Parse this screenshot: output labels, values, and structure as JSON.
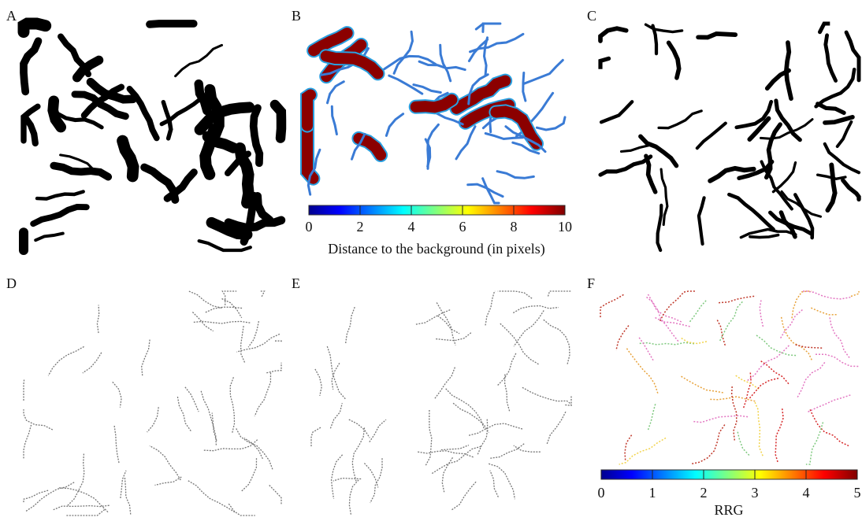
{
  "panels": [
    {
      "label": "A"
    },
    {
      "label": "B"
    },
    {
      "label": "C"
    },
    {
      "label": "D"
    },
    {
      "label": "E"
    },
    {
      "label": "F"
    }
  ],
  "colorbars": [
    {
      "label": "Distance to the background (in pixels)",
      "lim": [
        0,
        10
      ],
      "ticks": [
        0,
        2,
        4,
        6,
        8,
        10
      ]
    },
    {
      "label": "RRG",
      "lim": [
        0,
        5
      ],
      "ticks": [
        0,
        1,
        2,
        3,
        4,
        5
      ]
    }
  ]
}
